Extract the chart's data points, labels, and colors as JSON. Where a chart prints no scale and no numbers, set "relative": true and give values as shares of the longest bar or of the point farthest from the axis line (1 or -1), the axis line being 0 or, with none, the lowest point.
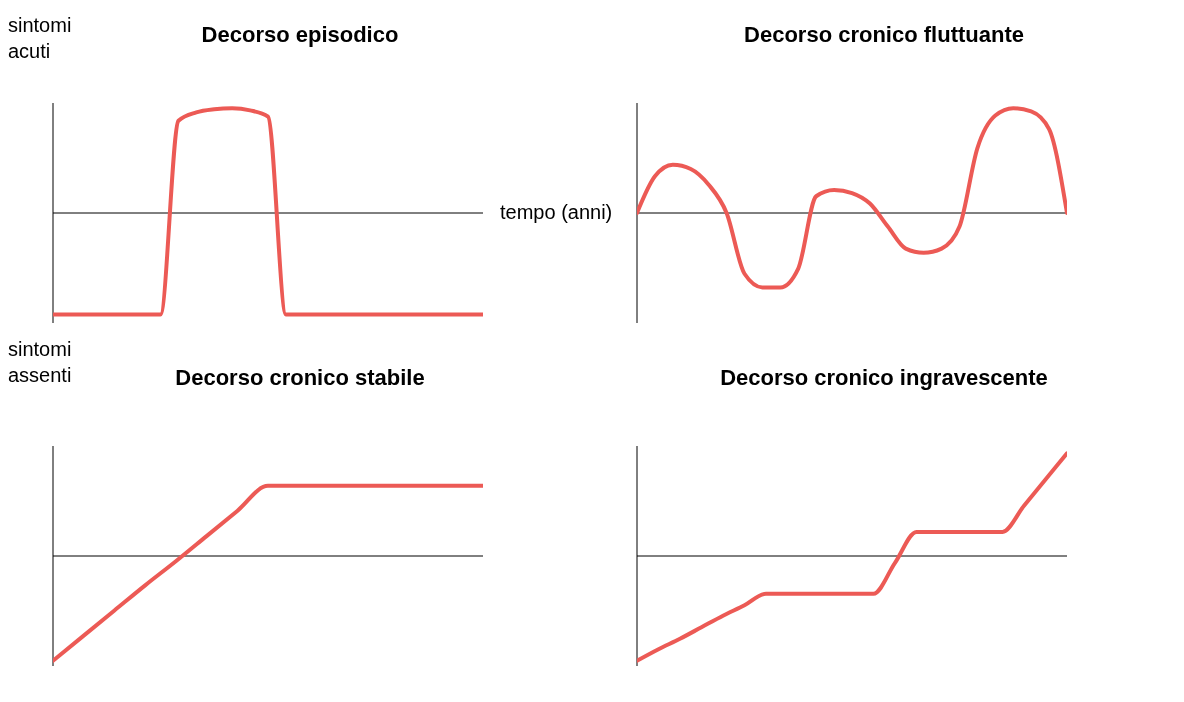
{
  "chart_data": [
    {
      "type": "line",
      "title": "Decorso episodico",
      "xlabel": "tempo (anni)",
      "annotations": [
        "sintomi acuti",
        "sintomi assenti"
      ],
      "relative": true,
      "categories": [
        null,
        null,
        null,
        null,
        null,
        null,
        null,
        null,
        null,
        null,
        null,
        null,
        null,
        null,
        null,
        null,
        null,
        null,
        null,
        null,
        null,
        null,
        null,
        null,
        null
      ],
      "series": [
        {
          "color": "#ec5a55",
          "values": [
            -0.97,
            -0.97,
            -0.97,
            -0.97,
            -0.97,
            -0.97,
            -0.97,
            0.88,
            0.96,
            0.99,
            1,
            0.98,
            0.92,
            -0.97,
            -0.97,
            -0.97,
            -0.97,
            -0.97,
            -0.97,
            -0.97,
            -0.97,
            -0.97,
            -0.97,
            -0.97,
            -0.97
          ]
        }
      ]
    },
    {
      "type": "line",
      "title": "Decorso cronico fluttuante",
      "relative": true,
      "categories": [
        null,
        null,
        null,
        null,
        null,
        null,
        null,
        null,
        null,
        null,
        null,
        null,
        null,
        null,
        null,
        null,
        null,
        null,
        null,
        null,
        null,
        null,
        null,
        null,
        null
      ],
      "series": [
        {
          "color": "#ec5a55",
          "values": [
            0,
            0.35,
            0.46,
            0.42,
            0.27,
            0,
            -0.58,
            -0.71,
            -0.71,
            -0.53,
            0.16,
            0.22,
            0.19,
            0.09,
            -0.13,
            -0.34,
            -0.38,
            -0.34,
            -0.13,
            0.62,
            0.93,
            1,
            0.97,
            0.8,
            0
          ]
        }
      ]
    },
    {
      "type": "line",
      "title": "Decorso cronico stabile",
      "relative": true,
      "categories": [
        null,
        null,
        null,
        null,
        null,
        null,
        null,
        null,
        null,
        null,
        null,
        null,
        null,
        null,
        null
      ],
      "series": [
        {
          "color": "#ec5a55",
          "values": [
            -1,
            -0.76,
            -0.52,
            -0.28,
            -0.05,
            0.19,
            0.43,
            0.67,
            0.67,
            0.67,
            0.67,
            0.67,
            0.67,
            0.67,
            0.67
          ]
        }
      ]
    },
    {
      "type": "line",
      "title": "Decorso cronico ingravescente",
      "relative": true,
      "categories": [
        null,
        null,
        null,
        null,
        null,
        null,
        null,
        null,
        null,
        null,
        null,
        null,
        null,
        null,
        null,
        null,
        null,
        null,
        null,
        null,
        null
      ],
      "series": [
        {
          "color": "#ec5a55",
          "values": [
            -1,
            -0.89,
            -0.79,
            -0.68,
            -0.57,
            -0.47,
            -0.36,
            -0.36,
            -0.36,
            -0.36,
            -0.36,
            -0.36,
            -0.065,
            0.23,
            0.23,
            0.23,
            0.23,
            0.23,
            0.48,
            0.73,
            0.98
          ]
        }
      ]
    }
  ]
}
